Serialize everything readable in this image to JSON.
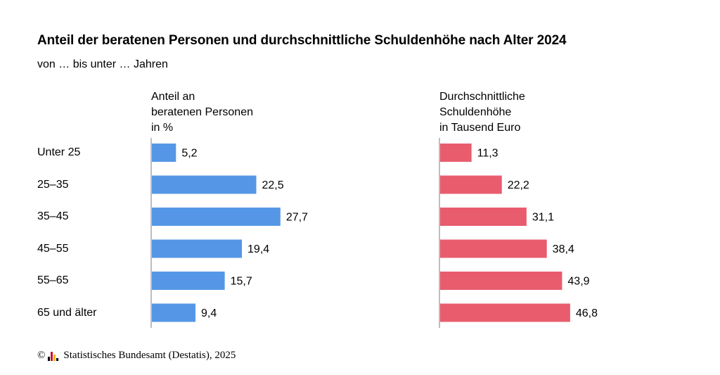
{
  "title": "Anteil der beratenen Personen und durchschnittliche Schuldenhöhe nach Alter 2024",
  "subtitle": "von … bis unter … Jahren",
  "footer": {
    "copyright_symbol": "©",
    "source": "Statistisches Bundesamt (Destatis), 2025"
  },
  "chart_data": [
    {
      "type": "bar",
      "orientation": "horizontal",
      "header": [
        "Anteil an",
        "beratenen Personen",
        "in %"
      ],
      "categories": [
        "Unter 25",
        "25–35",
        "35–45",
        "45–55",
        "55–65",
        "65 und älter"
      ],
      "values": [
        5.2,
        22.5,
        27.7,
        19.4,
        15.7,
        9.4
      ],
      "value_labels": [
        "5,2",
        "22,5",
        "27,7",
        "19,4",
        "15,7",
        "9,4"
      ],
      "color": "#5597e6",
      "xlim": [
        0,
        30
      ]
    },
    {
      "type": "bar",
      "orientation": "horizontal",
      "header": [
        "Durchschnittliche",
        "Schuldenhöhe",
        "in Tausend Euro"
      ],
      "categories": [
        "Unter 25",
        "25–35",
        "35–45",
        "45–55",
        "55–65",
        "65 und älter"
      ],
      "values": [
        11.3,
        22.2,
        31.1,
        38.4,
        43.9,
        46.8
      ],
      "value_labels": [
        "11,3",
        "22,2",
        "31,1",
        "38,4",
        "43,9",
        "46,8"
      ],
      "color": "#e85c6e",
      "xlim": [
        0,
        50
      ]
    }
  ]
}
